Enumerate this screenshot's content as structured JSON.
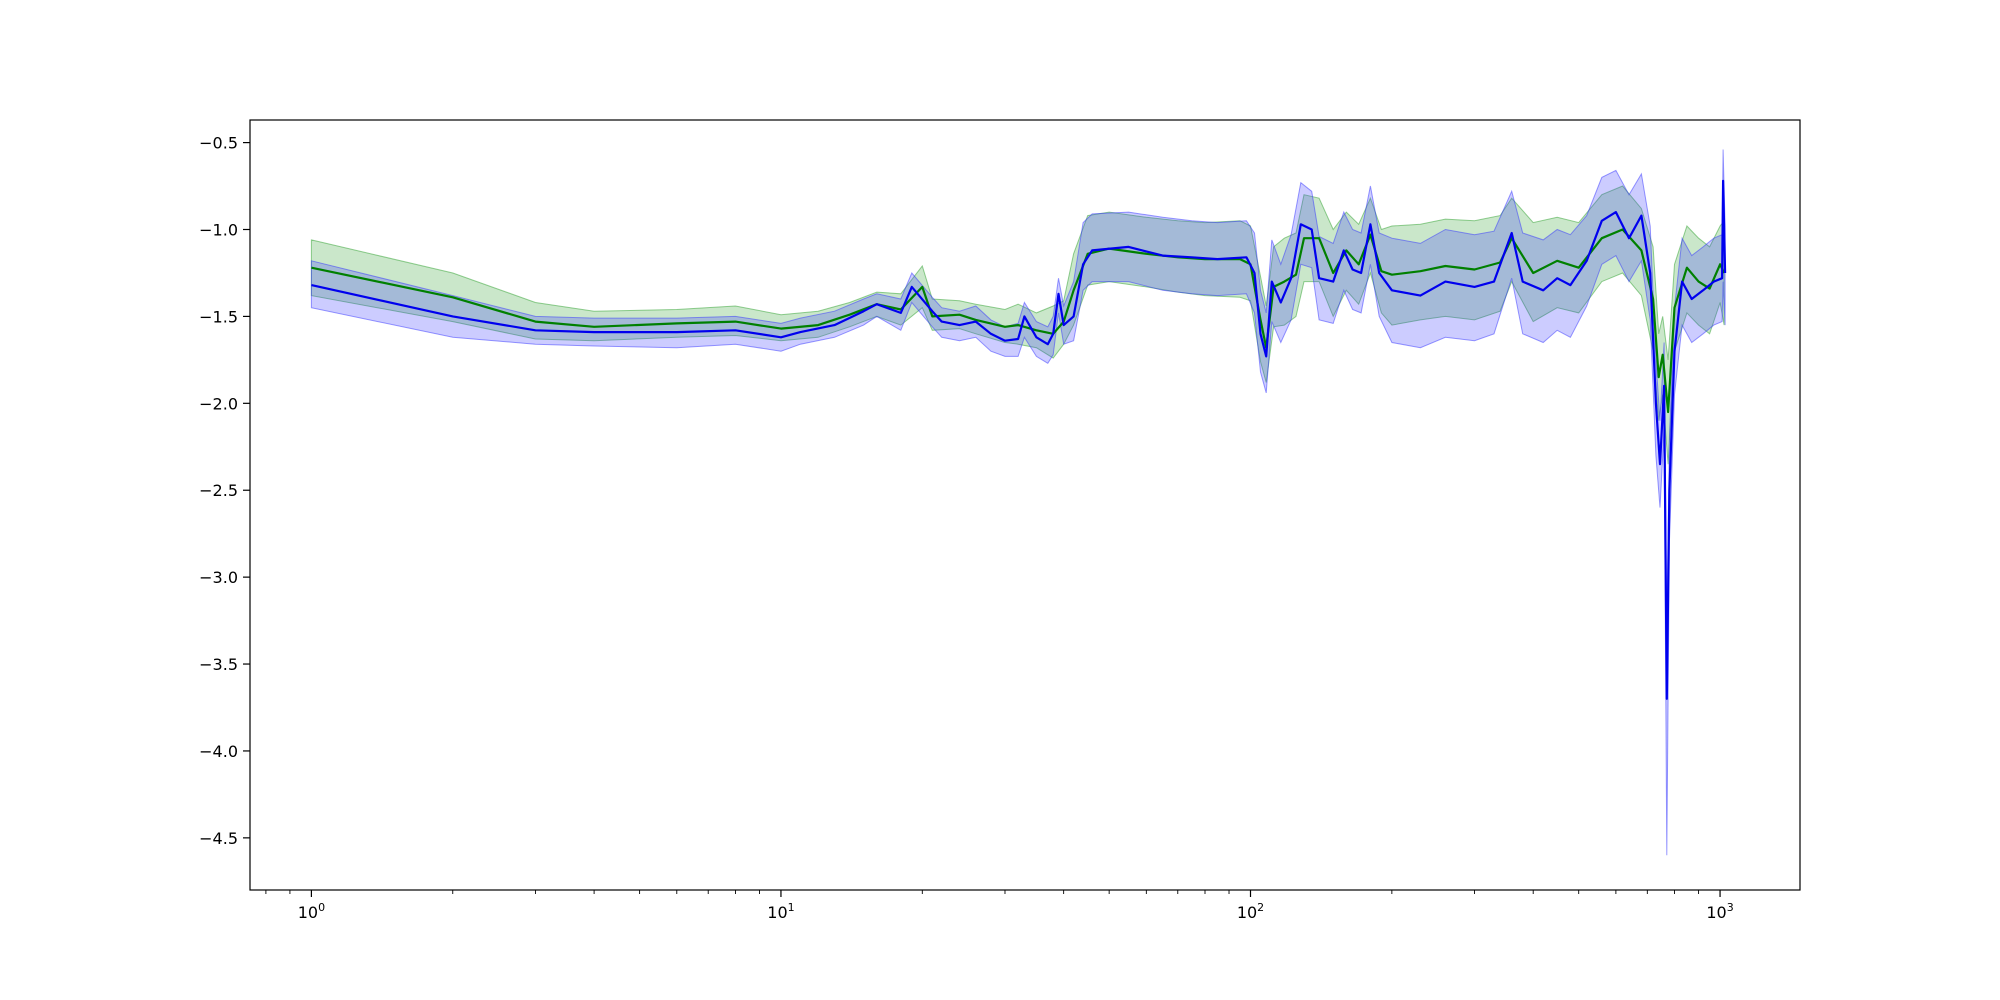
{
  "chart_data": {
    "type": "line",
    "title": "",
    "xlabel": "",
    "ylabel": "",
    "x_scale": "log",
    "xlim": [
      0.74,
      1480
    ],
    "ylim": [
      -4.8,
      -0.37
    ],
    "grid": false,
    "legend": "none",
    "x_ticks": [
      {
        "value": 1,
        "base": "10",
        "exp": "0"
      },
      {
        "value": 10,
        "base": "10",
        "exp": "1"
      },
      {
        "value": 100,
        "base": "10",
        "exp": "2"
      },
      {
        "value": 1000,
        "base": "10",
        "exp": "3"
      }
    ],
    "y_ticks": [
      {
        "value": -0.5,
        "label": "−0.5"
      },
      {
        "value": -1.0,
        "label": "−1.0"
      },
      {
        "value": -1.5,
        "label": "−1.5"
      },
      {
        "value": -2.0,
        "label": "−2.0"
      },
      {
        "value": -2.5,
        "label": "−2.5"
      },
      {
        "value": -3.0,
        "label": "−3.0"
      },
      {
        "value": -3.5,
        "label": "−3.5"
      },
      {
        "value": -4.0,
        "label": "−4.0"
      },
      {
        "value": -4.5,
        "label": "−4.5"
      }
    ],
    "series": [
      {
        "color": "#008000",
        "band_color": "#2ca02c",
        "band_opacity": 0.25,
        "points": [
          [
            1,
            -1.22,
            -1.06,
            -1.38
          ],
          [
            2,
            -1.39,
            -1.25,
            -1.53
          ],
          [
            3,
            -1.53,
            -1.42,
            -1.63
          ],
          [
            4,
            -1.56,
            -1.47,
            -1.64
          ],
          [
            6,
            -1.54,
            -1.46,
            -1.62
          ],
          [
            8,
            -1.53,
            -1.44,
            -1.61
          ],
          [
            10,
            -1.57,
            -1.49,
            -1.64
          ],
          [
            12,
            -1.55,
            -1.47,
            -1.62
          ],
          [
            14,
            -1.49,
            -1.42,
            -1.56
          ],
          [
            16,
            -1.43,
            -1.36,
            -1.5
          ],
          [
            18,
            -1.46,
            -1.37,
            -1.55
          ],
          [
            20,
            -1.33,
            -1.21,
            -1.45
          ],
          [
            21,
            -1.5,
            -1.4,
            -1.58
          ],
          [
            24,
            -1.49,
            -1.41,
            -1.57
          ],
          [
            26,
            -1.52,
            -1.43,
            -1.6
          ],
          [
            30,
            -1.56,
            -1.46,
            -1.65
          ],
          [
            32,
            -1.55,
            -1.43,
            -1.66
          ],
          [
            35,
            -1.58,
            -1.48,
            -1.68
          ],
          [
            38,
            -1.6,
            -1.44,
            -1.74
          ],
          [
            40,
            -1.53,
            -1.41,
            -1.66
          ],
          [
            42,
            -1.35,
            -1.14,
            -1.55
          ],
          [
            45,
            -1.14,
            -0.92,
            -1.32
          ],
          [
            50,
            -1.11,
            -0.9,
            -1.3
          ],
          [
            60,
            -1.14,
            -0.93,
            -1.33
          ],
          [
            70,
            -1.16,
            -0.95,
            -1.36
          ],
          [
            80,
            -1.17,
            -0.96,
            -1.38
          ],
          [
            95,
            -1.17,
            -0.95,
            -1.39
          ],
          [
            100,
            -1.2,
            -0.98,
            -1.41
          ],
          [
            105,
            -1.52,
            -1.27,
            -1.76
          ],
          [
            108,
            -1.68,
            -1.44,
            -1.88
          ],
          [
            112,
            -1.33,
            -1.1,
            -1.56
          ],
          [
            118,
            -1.3,
            -1.05,
            -1.55
          ],
          [
            125,
            -1.26,
            -1.02,
            -1.5
          ],
          [
            130,
            -1.05,
            -0.8,
            -1.3
          ],
          [
            140,
            -1.05,
            -0.82,
            -1.3
          ],
          [
            150,
            -1.25,
            -1.0,
            -1.5
          ],
          [
            160,
            -1.12,
            -0.9,
            -1.35
          ],
          [
            170,
            -1.2,
            -0.97,
            -1.43
          ],
          [
            180,
            -1.03,
            -0.82,
            -1.25
          ],
          [
            190,
            -1.24,
            -1.0,
            -1.48
          ],
          [
            200,
            -1.26,
            -0.98,
            -1.55
          ],
          [
            230,
            -1.24,
            -0.97,
            -1.52
          ],
          [
            260,
            -1.21,
            -0.94,
            -1.5
          ],
          [
            300,
            -1.23,
            -0.95,
            -1.52
          ],
          [
            340,
            -1.19,
            -0.92,
            -1.47
          ],
          [
            360,
            -1.05,
            -0.82,
            -1.3
          ],
          [
            400,
            -1.25,
            -0.96,
            -1.53
          ],
          [
            450,
            -1.18,
            -0.93,
            -1.45
          ],
          [
            500,
            -1.22,
            -0.96,
            -1.48
          ],
          [
            560,
            -1.05,
            -0.8,
            -1.3
          ],
          [
            620,
            -1.0,
            -0.75,
            -1.25
          ],
          [
            680,
            -1.12,
            -0.88,
            -1.38
          ],
          [
            720,
            -1.4,
            -1.1,
            -1.7
          ],
          [
            740,
            -1.85,
            -1.6,
            -2.1
          ],
          [
            755,
            -1.72,
            -1.5,
            -1.95
          ],
          [
            775,
            -2.05,
            -1.75,
            -2.35
          ],
          [
            800,
            -1.45,
            -1.2,
            -1.7
          ],
          [
            850,
            -1.22,
            -0.98,
            -1.48
          ],
          [
            900,
            -1.3,
            -1.05,
            -1.55
          ],
          [
            950,
            -1.34,
            -1.1,
            -1.6
          ],
          [
            1000,
            -1.2,
            -0.98,
            -1.42
          ],
          [
            1020,
            -1.25,
            -0.95,
            -1.55
          ]
        ]
      },
      {
        "color": "#0000ee",
        "band_color": "#3333ff",
        "band_opacity": 0.25,
        "points": [
          [
            1,
            -1.32,
            -1.18,
            -1.45
          ],
          [
            2,
            -1.5,
            -1.38,
            -1.62
          ],
          [
            3,
            -1.58,
            -1.5,
            -1.66
          ],
          [
            4,
            -1.59,
            -1.51,
            -1.67
          ],
          [
            6,
            -1.59,
            -1.51,
            -1.68
          ],
          [
            8,
            -1.58,
            -1.5,
            -1.66
          ],
          [
            10,
            -1.62,
            -1.54,
            -1.7
          ],
          [
            11,
            -1.59,
            -1.51,
            -1.66
          ],
          [
            13,
            -1.55,
            -1.47,
            -1.62
          ],
          [
            15,
            -1.47,
            -1.4,
            -1.55
          ],
          [
            16,
            -1.43,
            -1.37,
            -1.5
          ],
          [
            18,
            -1.48,
            -1.4,
            -1.58
          ],
          [
            19,
            -1.33,
            -1.25,
            -1.42
          ],
          [
            21,
            -1.47,
            -1.39,
            -1.56
          ],
          [
            22,
            -1.53,
            -1.45,
            -1.62
          ],
          [
            24,
            -1.55,
            -1.47,
            -1.64
          ],
          [
            26,
            -1.53,
            -1.44,
            -1.62
          ],
          [
            28,
            -1.6,
            -1.52,
            -1.7
          ],
          [
            30,
            -1.64,
            -1.56,
            -1.73
          ],
          [
            32,
            -1.63,
            -1.54,
            -1.73
          ],
          [
            33,
            -1.5,
            -1.42,
            -1.62
          ],
          [
            35,
            -1.62,
            -1.53,
            -1.73
          ],
          [
            37,
            -1.66,
            -1.56,
            -1.77
          ],
          [
            38,
            -1.6,
            -1.5,
            -1.72
          ],
          [
            39,
            -1.37,
            -1.28,
            -1.48
          ],
          [
            40,
            -1.55,
            -1.44,
            -1.66
          ],
          [
            42,
            -1.5,
            -1.3,
            -1.64
          ],
          [
            44,
            -1.2,
            -0.96,
            -1.35
          ],
          [
            46,
            -1.12,
            -0.91,
            -1.3
          ],
          [
            55,
            -1.1,
            -0.9,
            -1.3
          ],
          [
            65,
            -1.15,
            -0.93,
            -1.35
          ],
          [
            75,
            -1.16,
            -0.95,
            -1.37
          ],
          [
            85,
            -1.17,
            -0.96,
            -1.38
          ],
          [
            98,
            -1.16,
            -0.95,
            -1.37
          ],
          [
            102,
            -1.25,
            -1.02,
            -1.48
          ],
          [
            105,
            -1.6,
            -1.35,
            -1.82
          ],
          [
            108,
            -1.73,
            -1.48,
            -1.94
          ],
          [
            111,
            -1.3,
            -1.06,
            -1.53
          ],
          [
            116,
            -1.42,
            -1.2,
            -1.65
          ],
          [
            122,
            -1.28,
            -1.03,
            -1.52
          ],
          [
            128,
            -0.97,
            -0.73,
            -1.2
          ],
          [
            135,
            -1.0,
            -0.78,
            -1.22
          ],
          [
            140,
            -1.28,
            -1.04,
            -1.52
          ],
          [
            150,
            -1.3,
            -1.08,
            -1.54
          ],
          [
            158,
            -1.12,
            -0.9,
            -1.35
          ],
          [
            165,
            -1.23,
            -1.0,
            -1.46
          ],
          [
            172,
            -1.25,
            -1.02,
            -1.48
          ],
          [
            180,
            -0.97,
            -0.75,
            -1.2
          ],
          [
            188,
            -1.25,
            -1.02,
            -1.5
          ],
          [
            200,
            -1.35,
            -1.05,
            -1.65
          ],
          [
            230,
            -1.38,
            -1.08,
            -1.68
          ],
          [
            260,
            -1.3,
            -1.0,
            -1.62
          ],
          [
            300,
            -1.33,
            -1.03,
            -1.64
          ],
          [
            330,
            -1.3,
            -1.01,
            -1.6
          ],
          [
            360,
            -1.02,
            -0.78,
            -1.28
          ],
          [
            380,
            -1.3,
            -1.02,
            -1.6
          ],
          [
            420,
            -1.35,
            -1.06,
            -1.65
          ],
          [
            450,
            -1.28,
            -1.0,
            -1.58
          ],
          [
            480,
            -1.32,
            -1.03,
            -1.62
          ],
          [
            520,
            -1.18,
            -0.92,
            -1.44
          ],
          [
            560,
            -0.95,
            -0.7,
            -1.2
          ],
          [
            600,
            -0.9,
            -0.66,
            -1.15
          ],
          [
            640,
            -1.05,
            -0.8,
            -1.3
          ],
          [
            680,
            -0.92,
            -0.68,
            -1.18
          ],
          [
            710,
            -1.25,
            -0.98,
            -1.52
          ],
          [
            730,
            -2.0,
            -1.75,
            -2.3
          ],
          [
            745,
            -2.35,
            -2.1,
            -2.6
          ],
          [
            760,
            -1.9,
            -1.65,
            -2.15
          ],
          [
            770,
            -3.7,
            -3.3,
            -4.6
          ],
          [
            780,
            -2.5,
            -2.2,
            -2.8
          ],
          [
            800,
            -1.7,
            -1.45,
            -1.95
          ],
          [
            830,
            -1.3,
            -1.05,
            -1.55
          ],
          [
            870,
            -1.4,
            -1.15,
            -1.65
          ],
          [
            920,
            -1.35,
            -1.1,
            -1.6
          ],
          [
            970,
            -1.3,
            -1.05,
            -1.55
          ],
          [
            1010,
            -1.28,
            -1.03,
            -1.53
          ],
          [
            1015,
            -0.72,
            -0.54,
            -1.3
          ],
          [
            1025,
            -1.25,
            -0.98,
            -1.55
          ]
        ]
      }
    ]
  }
}
